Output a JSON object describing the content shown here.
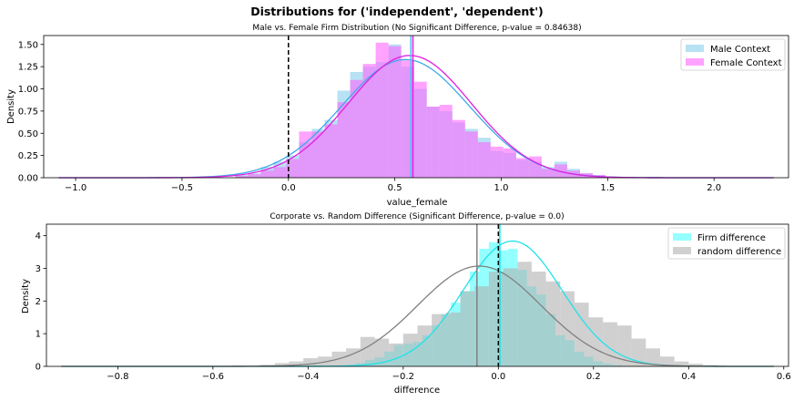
{
  "figure": {
    "suptitle": "Distributions for ('independent', 'dependent')"
  },
  "chart_data": [
    {
      "type": "histogram",
      "title": "Male vs. Female Firm Distribution (No Significant Difference, p-value = 0.84638)",
      "xlabel": "value_female",
      "ylabel": "Density",
      "xlim": [
        -1.15,
        2.35
      ],
      "ylim": [
        0,
        1.6
      ],
      "xticks": [
        -1.0,
        -0.5,
        0.0,
        0.5,
        1.0,
        1.5,
        2.0
      ],
      "xtick_labels": [
        "−1.0",
        "−0.5",
        "0.0",
        "0.5",
        "1.0",
        "1.5",
        "2.0"
      ],
      "yticks": [
        0,
        0.25,
        0.5,
        0.75,
        1.0,
        1.25,
        1.5
      ],
      "ytick_labels": [
        "0.00",
        "0.25",
        "0.50",
        "0.75",
        "1.00",
        "1.25",
        "1.50"
      ],
      "legend": "upper right",
      "vlines": [
        {
          "x": 0.0,
          "style": "dashed",
          "color": "#000000"
        },
        {
          "x": 0.575,
          "style": "solid",
          "color": "#4fc3f7"
        },
        {
          "x": 0.585,
          "style": "solid",
          "color": "#e020e0"
        }
      ],
      "series": [
        {
          "name": "Male Context",
          "color": "#87ceeb",
          "kde_color": "#3fa8e8",
          "bin_start": -0.25,
          "bin_width": 0.06,
          "values": [
            0.03,
            0.05,
            0.12,
            0.18,
            0.25,
            0.4,
            0.55,
            0.65,
            0.98,
            1.19,
            1.25,
            1.3,
            1.5,
            1.25,
            1.0,
            0.8,
            0.75,
            0.62,
            0.55,
            0.45,
            0.3,
            0.28,
            0.2,
            0.18,
            0.12,
            0.18,
            0.1,
            0.05,
            0.03
          ],
          "kde_mu": 0.55,
          "kde_sigma": 0.3
        },
        {
          "name": "Female Context",
          "color": "#ff66ff",
          "kde_color": "#e020e0",
          "bin_start": -0.25,
          "bin_width": 0.06,
          "values": [
            0.02,
            0.04,
            0.08,
            0.12,
            0.21,
            0.52,
            0.52,
            0.6,
            0.85,
            1.1,
            1.28,
            1.52,
            1.48,
            1.32,
            1.08,
            0.8,
            0.82,
            0.65,
            0.52,
            0.4,
            0.35,
            0.33,
            0.22,
            0.24,
            0.1,
            0.15,
            0.08,
            0.05,
            0.03
          ],
          "kde_mu": 0.57,
          "kde_sigma": 0.29
        }
      ]
    },
    {
      "type": "histogram",
      "title": "Corporate vs. Random Difference (Significant Difference, p-value = 0.0)",
      "xlabel": "difference",
      "ylabel": "Density",
      "xlim": [
        -0.95,
        0.61
      ],
      "ylim": [
        0,
        4.35
      ],
      "xticks": [
        -0.8,
        -0.6,
        -0.4,
        -0.2,
        0.0,
        0.2,
        0.4,
        0.6
      ],
      "xtick_labels": [
        "−0.8",
        "−0.6",
        "−0.4",
        "−0.2",
        "0.0",
        "0.2",
        "0.4",
        "0.6"
      ],
      "yticks": [
        0,
        1,
        2,
        3,
        4
      ],
      "ytick_labels": [
        "0",
        "1",
        "2",
        "3",
        "4"
      ],
      "legend": "upper right",
      "vlines": [
        {
          "x": 0.0,
          "style": "dashed",
          "color": "#000000"
        },
        {
          "x": 0.003,
          "style": "solid",
          "color": "#00e5e5"
        },
        {
          "x": -0.045,
          "style": "solid",
          "color": "#808080"
        }
      ],
      "series": [
        {
          "name": "Firm difference",
          "color": "#4dffff",
          "kde_color": "#1ee3ea",
          "bin_start": -0.32,
          "bin_width": 0.02,
          "values": [
            0.05,
            0.1,
            0.2,
            0.28,
            0.45,
            0.65,
            0.7,
            0.75,
            0.95,
            1.25,
            1.6,
            1.95,
            2.3,
            2.9,
            3.6,
            3.8,
            3.55,
            3.6,
            2.95,
            2.45,
            2.2,
            1.6,
            0.95,
            0.8,
            0.45,
            0.3,
            0.15,
            0.08,
            0.04
          ],
          "kde_mu": 0.03,
          "kde_sigma": 0.104
        },
        {
          "name": "random difference",
          "color": "#b0b0b0",
          "kde_color": "#808080",
          "bin_start": -0.5,
          "bin_width": 0.03,
          "values": [
            0.05,
            0.1,
            0.15,
            0.25,
            0.3,
            0.45,
            0.55,
            0.9,
            0.85,
            0.7,
            1.0,
            1.25,
            1.6,
            1.65,
            2.3,
            2.45,
            2.9,
            3.0,
            3.2,
            2.9,
            2.6,
            2.3,
            1.95,
            1.5,
            1.35,
            1.25,
            0.85,
            0.55,
            0.3,
            0.15,
            0.08,
            0.04
          ],
          "kde_mu": -0.04,
          "kde_sigma": 0.13
        }
      ]
    }
  ]
}
